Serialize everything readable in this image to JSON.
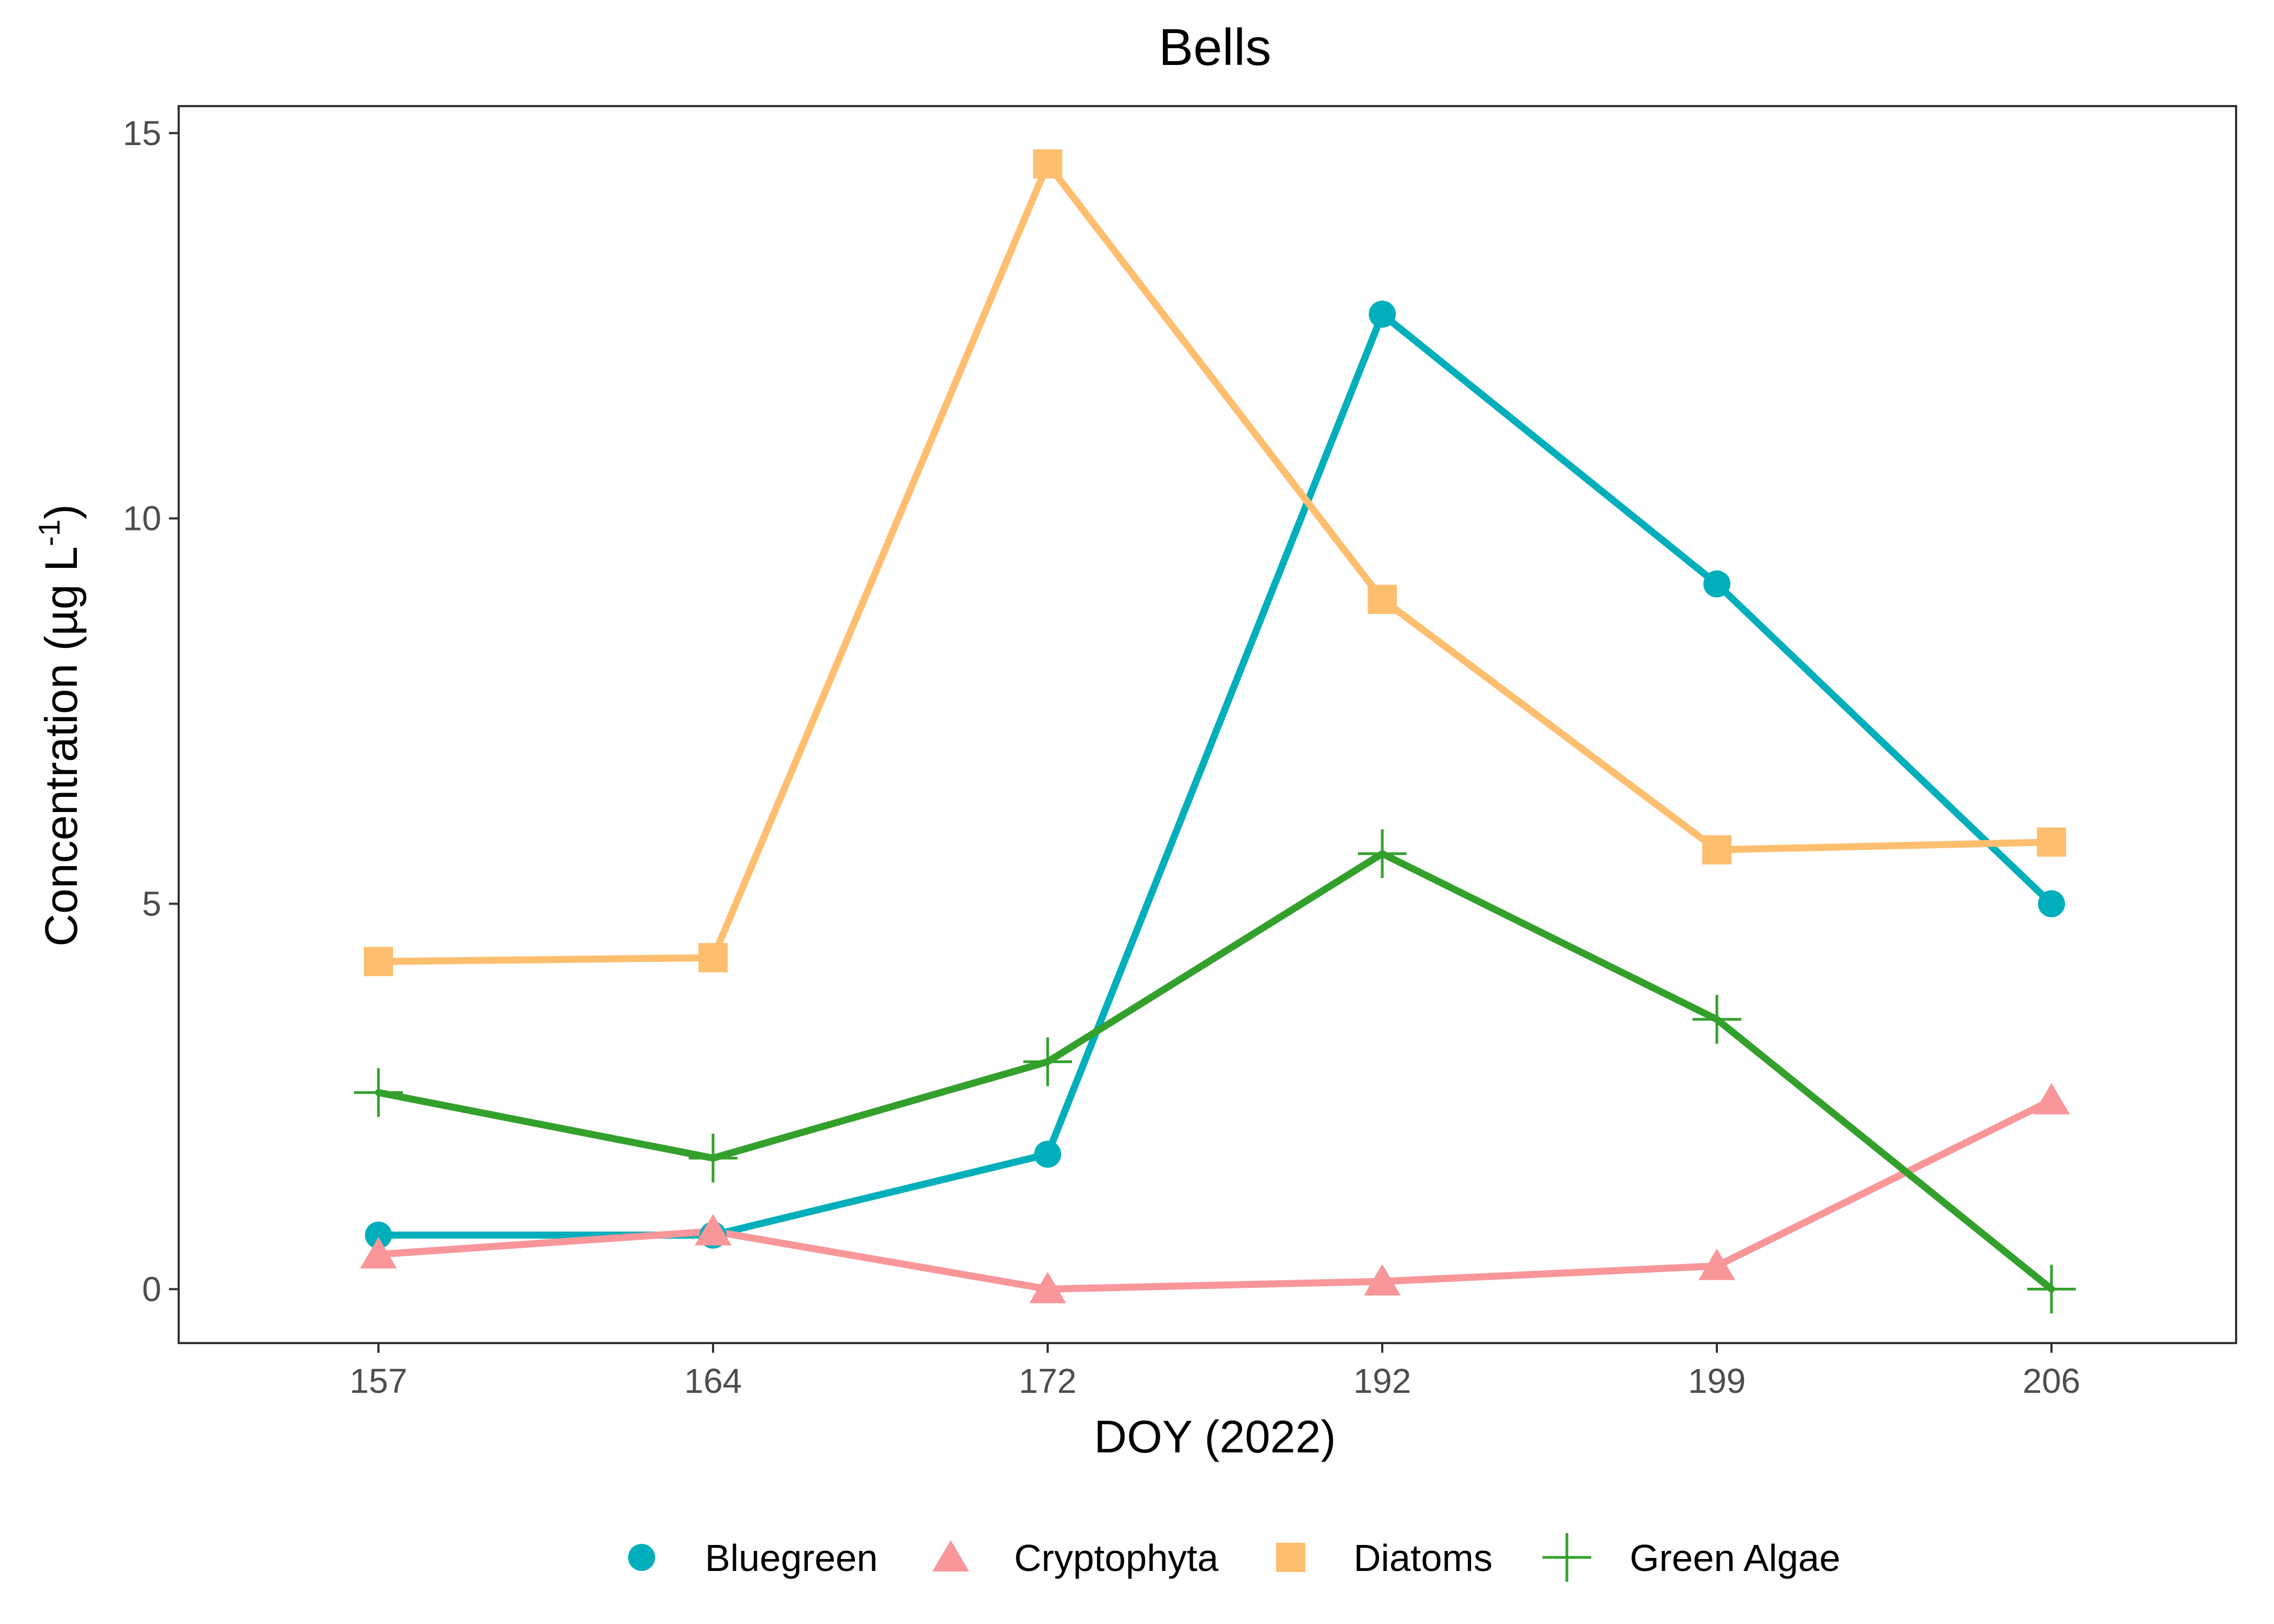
{
  "chart_data": {
    "type": "line",
    "title": "Bells",
    "xlabel": "DOY (2022)",
    "ylabel": "Concentration (µg L",
    "ylabel_superscript": "-1",
    "ylabel_close": ")",
    "categories": [
      "157",
      "164",
      "172",
      "192",
      "199",
      "206"
    ],
    "ylim": [
      -0.7,
      15.35
    ],
    "yticks": [
      0,
      5,
      10,
      15
    ],
    "grid": false,
    "legend_position": "bottom",
    "series": [
      {
        "name": "Bluegreen",
        "color": "#00AFBB",
        "marker": "circle",
        "values": [
          0.7,
          0.7,
          1.75,
          12.65,
          9.15,
          5.0
        ]
      },
      {
        "name": "Cryptophyta",
        "color": "#F8969A",
        "marker": "triangle",
        "values": [
          0.45,
          0.75,
          0.0,
          0.1,
          0.3,
          2.45
        ]
      },
      {
        "name": "Diatoms",
        "color": "#FDBF6F",
        "marker": "square",
        "values": [
          4.25,
          4.3,
          14.6,
          8.95,
          5.7,
          5.8
        ]
      },
      {
        "name": "Green Algae",
        "color": "#33A02C",
        "marker": "plus",
        "values": [
          2.55,
          1.7,
          2.95,
          5.65,
          3.5,
          0.0
        ]
      }
    ]
  }
}
